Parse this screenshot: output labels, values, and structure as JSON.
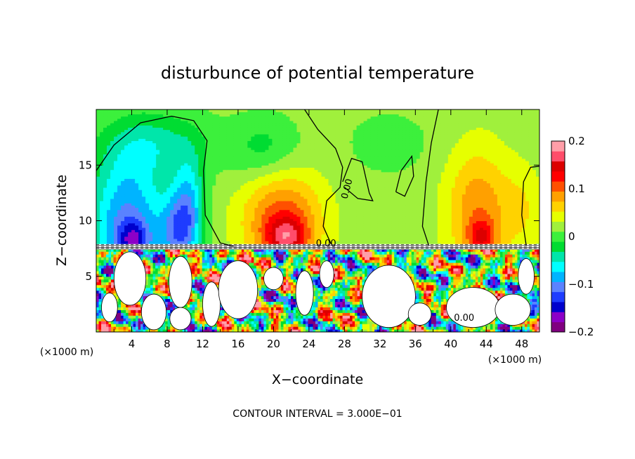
{
  "chart_data": {
    "type": "heatmap",
    "title": "disturbunce of potential temperature",
    "xlabel": "X−coordinate",
    "ylabel": "Z−coordinate",
    "x_unit": "(×1000 m)",
    "y_unit": "(×1000 m)",
    "xlim": [
      0,
      50
    ],
    "ylim": [
      0,
      20
    ],
    "x_ticks": [
      4,
      8,
      12,
      16,
      20,
      24,
      28,
      32,
      36,
      40,
      44,
      48
    ],
    "y_ticks": [
      5,
      10,
      15
    ],
    "colorbar": {
      "min": -0.2,
      "max": 0.2,
      "ticks": [
        0.2,
        0.1,
        0,
        -0.1,
        -0.2
      ],
      "tick_labels": [
        "0.2",
        "0.1",
        "0",
        "−0.1",
        "−0.2"
      ],
      "colors": [
        "#800080",
        "#8c00c8",
        "#0000cd",
        "#1e3cff",
        "#5a82ff",
        "#00b4ff",
        "#00ffff",
        "#00e6aa",
        "#00dc32",
        "#3cf03c",
        "#a0f03c",
        "#e6ff00",
        "#ffd200",
        "#ffa000",
        "#ff5000",
        "#ff0000",
        "#dc0000",
        "#ff4d6a",
        "#ff9ea8"
      ]
    },
    "contour_labels": [
      "0.00",
      "0.00",
      "0.00"
    ],
    "annotation": "CONTOUR INTERVAL = 3.000E−01",
    "upper_field": {
      "baseline": 0.02,
      "features": [
        {
          "x": 3.5,
          "z": 9.8,
          "rx": 4.5,
          "rz": 6.5,
          "value": -0.12
        },
        {
          "x": 4.2,
          "z": 8.2,
          "rx": 1.8,
          "rz": 1.8,
          "value": -0.08
        },
        {
          "x": 9.0,
          "z": 9.0,
          "rx": 2.0,
          "rz": 3.5,
          "value": -0.08
        },
        {
          "x": 10.5,
          "z": 11.0,
          "rx": 1.8,
          "rz": 4.5,
          "value": -0.09
        },
        {
          "x": 7.0,
          "z": 17.0,
          "rx": 6.0,
          "rz": 3.0,
          "value": -0.05
        },
        {
          "x": 21.0,
          "z": 10.0,
          "rx": 4.5,
          "rz": 4.5,
          "value": 0.09
        },
        {
          "x": 21.5,
          "z": 8.5,
          "rx": 2.3,
          "rz": 1.8,
          "value": 0.08
        },
        {
          "x": 19.0,
          "z": 16.5,
          "rx": 4.0,
          "rz": 3.0,
          "value": -0.04
        },
        {
          "x": 33.0,
          "z": 17.0,
          "rx": 5.0,
          "rz": 3.0,
          "value": -0.02
        },
        {
          "x": 43.0,
          "z": 11.0,
          "rx": 3.5,
          "rz": 5.5,
          "value": 0.07
        },
        {
          "x": 43.5,
          "z": 8.5,
          "rx": 1.6,
          "rz": 1.6,
          "value": 0.07
        },
        {
          "x": 48.0,
          "z": 11.0,
          "rx": 2.5,
          "rz": 4.0,
          "value": 0.03
        }
      ]
    }
  }
}
